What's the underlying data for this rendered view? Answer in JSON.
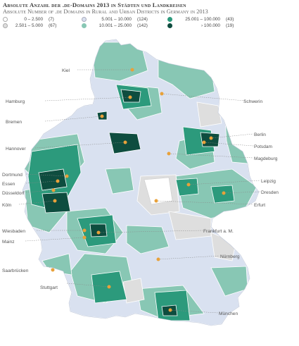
{
  "title": "Absolute Anzahl der .de-Domains 2013 in Städten und Landkreisen",
  "subtitle": "Absolute Number of .de Domains in Rural and Urban Districts in Germany in 2013",
  "legend": [
    {
      "range": "0 – 2.500",
      "count": "(7)",
      "color": "#ffffff"
    },
    {
      "range": "2.501 – 5.000",
      "count": "(67)",
      "color": "#dedede"
    },
    {
      "range": "5.001 – 10.000",
      "count": "(124)",
      "color": "#d9e1f0"
    },
    {
      "range": "10.001 – 25.000",
      "count": "(142)",
      "color": "#88c7b4"
    },
    {
      "range": "25.001 – 100.000",
      "count": "(43)",
      "color": "#2c9a7c"
    },
    {
      "range": "› 100.000",
      "count": "(19)",
      "color": "#0e4d3f"
    }
  ],
  "cities": [
    {
      "name": "Kiel"
    },
    {
      "name": "Hamburg"
    },
    {
      "name": "Schwerin"
    },
    {
      "name": "Bremen"
    },
    {
      "name": "Berlin"
    },
    {
      "name": "Potsdam"
    },
    {
      "name": "Hannover"
    },
    {
      "name": "Magdeburg"
    },
    {
      "name": "Dortmund"
    },
    {
      "name": "Essen"
    },
    {
      "name": "Düsseldorf"
    },
    {
      "name": "Leipzig"
    },
    {
      "name": "Dresden"
    },
    {
      "name": "Köln"
    },
    {
      "name": "Erfurt"
    },
    {
      "name": "Wiesbaden"
    },
    {
      "name": "Frankfurt a. M."
    },
    {
      "name": "Mainz"
    },
    {
      "name": "Nürnberg"
    },
    {
      "name": "Saarbrücken"
    },
    {
      "name": "Stuttgart"
    },
    {
      "name": "München"
    }
  ],
  "colors": {
    "capital_dot": "#e8a13a",
    "border": "#ffffff",
    "leader": "#888888"
  }
}
